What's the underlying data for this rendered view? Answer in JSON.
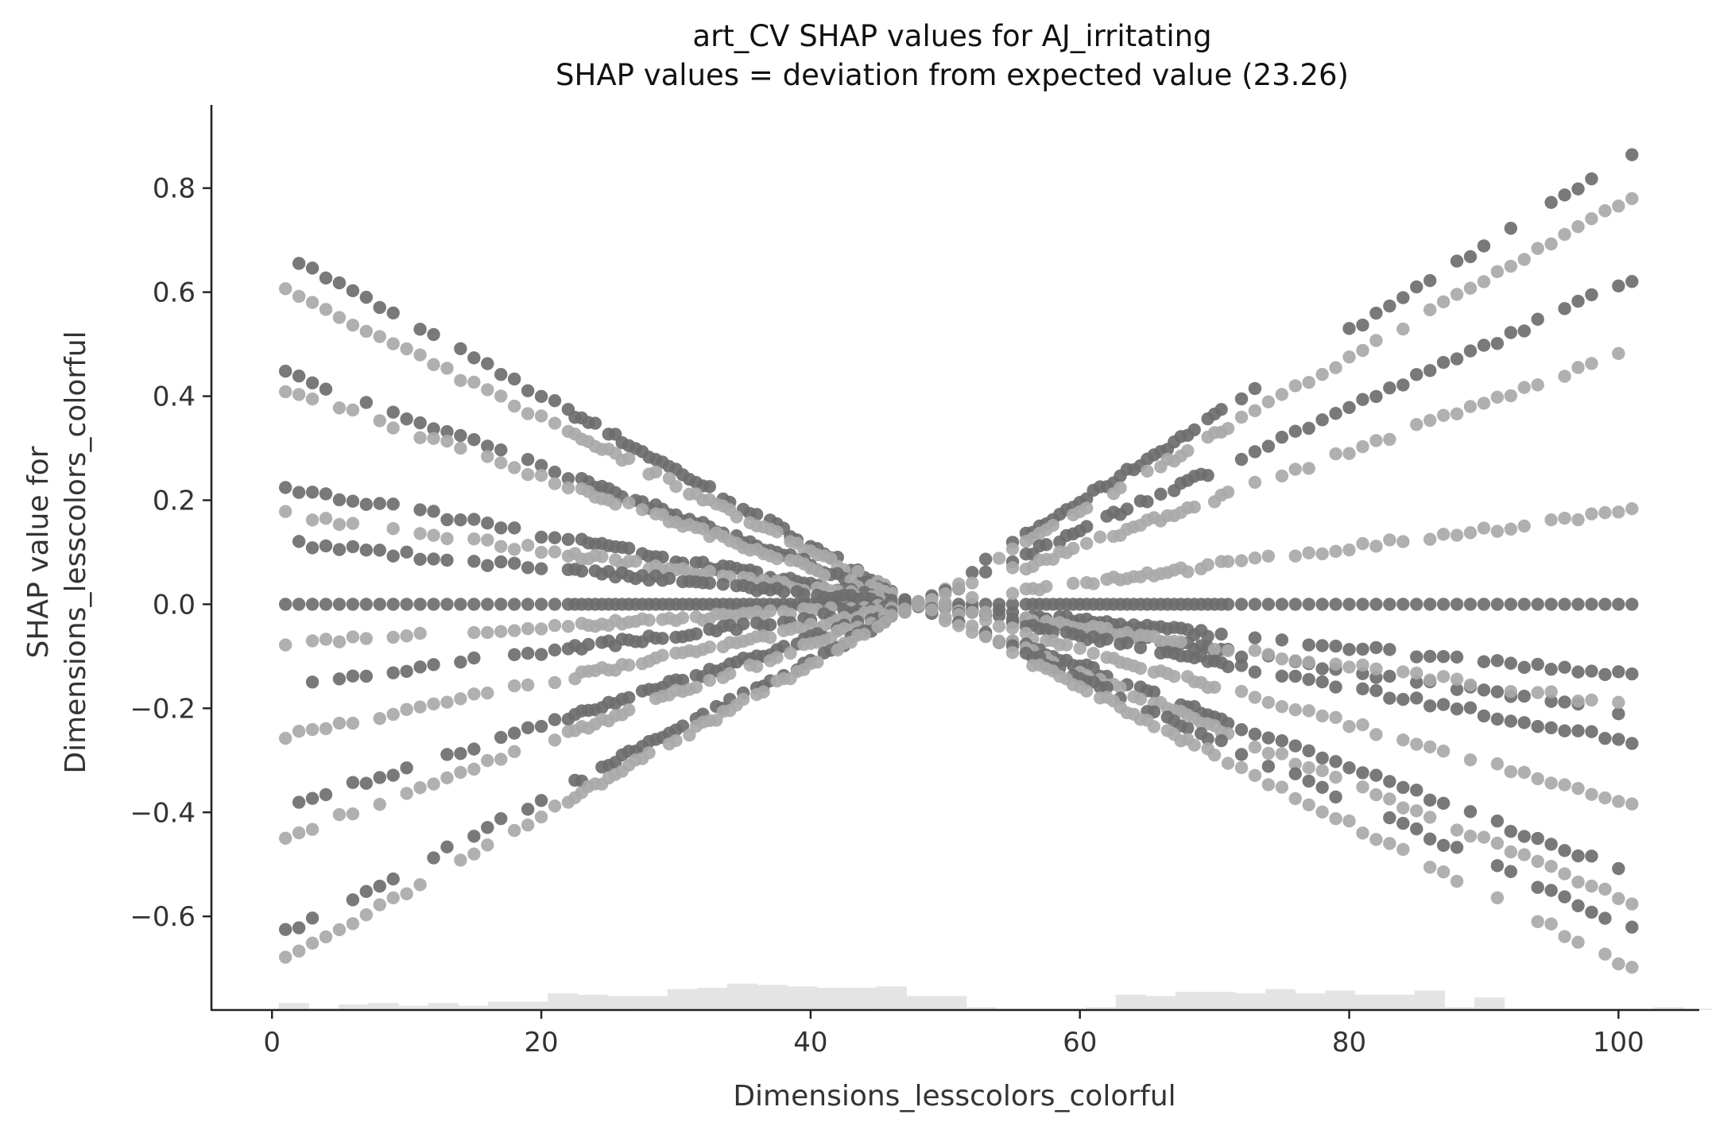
{
  "chart_data": {
    "type": "scatter",
    "title": "art_CV SHAP values for AJ_irritating",
    "subtitle": "SHAP values = deviation from expected value (23.26)",
    "xlabel": "Dimensions_lesscolors_colorful",
    "ylabel": [
      "SHAP value for",
      "Dimensions_lesscolors_colorful"
    ],
    "xlim": [
      -4.5,
      106
    ],
    "ylim": [
      -0.78,
      0.96
    ],
    "xticks": [
      0,
      20,
      40,
      60,
      80,
      100
    ],
    "yticks": [
      -0.6,
      -0.4,
      -0.2,
      0.0,
      0.2,
      0.4,
      0.6,
      0.8
    ],
    "xtick_labels": [
      "0",
      "20",
      "40",
      "60",
      "80",
      "100"
    ],
    "ytick_labels": [
      "−0.6",
      "−0.4",
      "−0.2",
      "0.0",
      "0.2",
      "0.4",
      "0.6",
      "0.8"
    ],
    "grid": false,
    "colors": {
      "dark_point": "#6e6e6e",
      "light_point": "#a9a9a9",
      "histogram": "#e4e4e4",
      "axis": "#222222"
    },
    "pivot_x": 48,
    "line_families": [
      {
        "shade": "dark",
        "slope_left": 0.0,
        "slope_right": 0.0
      },
      {
        "shade": "dark",
        "slope_left": -0.0143,
        "slope_right": 0.0164
      },
      {
        "shade": "light",
        "slope_left": -0.0128,
        "slope_right": 0.0148
      },
      {
        "shade": "dark",
        "slope_left": -0.0095,
        "slope_right": 0.0118
      },
      {
        "shade": "light",
        "slope_left": -0.0088,
        "slope_right": 0.0092
      },
      {
        "shade": "dark",
        "slope_left": -0.0048,
        "slope_right": -0.0026
      },
      {
        "shade": "light",
        "slope_left": -0.0037,
        "slope_right": 0.0034
      },
      {
        "shade": "dark",
        "slope_left": -0.0025,
        "slope_right": -0.004
      },
      {
        "shade": "light",
        "slope_left": 0.0016,
        "slope_right": -0.0037
      },
      {
        "shade": "dark",
        "slope_left": 0.0033,
        "slope_right": -0.005
      },
      {
        "shade": "light",
        "slope_left": 0.0054,
        "slope_right": -0.0072
      },
      {
        "shade": "dark",
        "slope_left": 0.0083,
        "slope_right": -0.0098
      },
      {
        "shade": "light",
        "slope_left": 0.0095,
        "slope_right": -0.0108
      },
      {
        "shade": "dark",
        "slope_left": 0.0134,
        "slope_right": -0.0118
      },
      {
        "shade": "light",
        "slope_left": 0.0145,
        "slope_right": -0.0132
      }
    ],
    "histogram": {
      "bin_start": 0.5,
      "bin_width": 2.22,
      "counts": [
        5,
        1,
        4,
        5,
        3,
        5,
        3,
        6,
        6,
        12,
        11,
        10,
        10,
        15,
        16,
        19,
        18,
        17,
        16,
        16,
        17,
        10,
        10,
        2,
        1,
        1,
        1,
        2,
        11,
        10,
        13,
        13,
        12,
        15,
        12,
        14,
        11,
        11,
        14,
        2,
        9,
        1,
        1,
        1,
        1,
        1,
        2,
        1,
        1,
        5
      ]
    }
  }
}
